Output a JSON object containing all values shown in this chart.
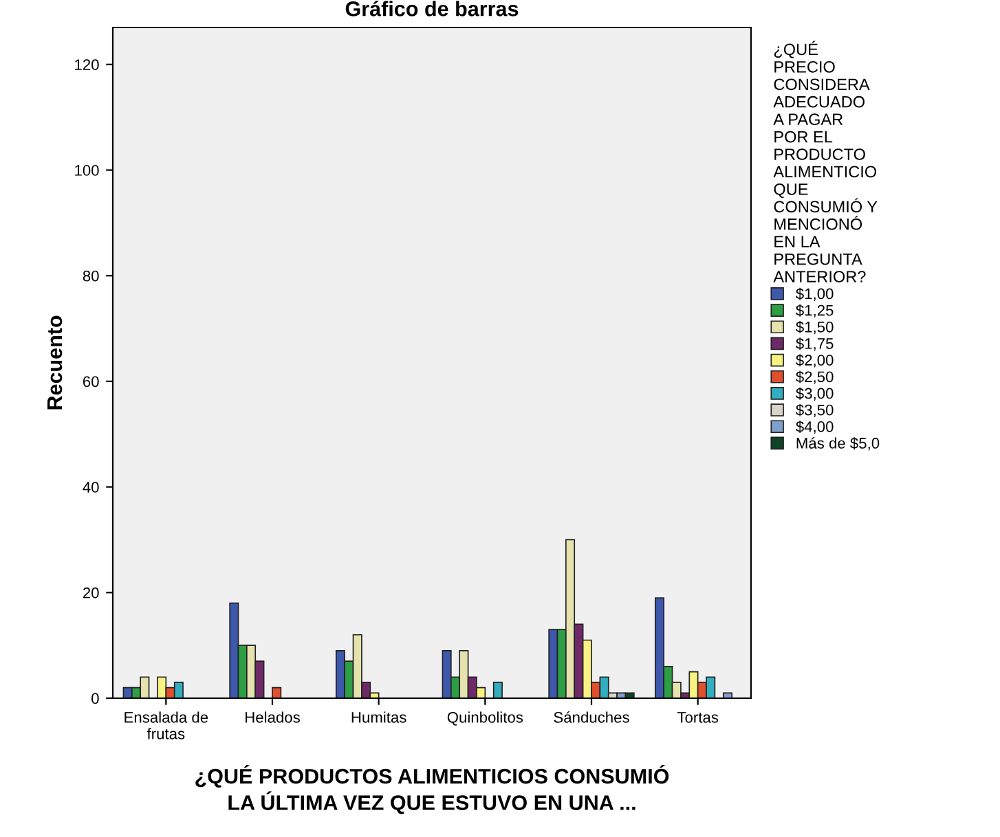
{
  "chart_data": {
    "type": "bar",
    "title": "Gráfico de barras",
    "xlabel": "¿QUÉ PRODUCTOS ALIMENTICIOS CONSUMIÓ\nLA ÚLTIMA VEZ QUE ESTUVO EN UNA ...",
    "ylabel": "Recuento",
    "legend_title": "¿QUÉ\nPRECIO\nCONSIDERA\nADECUADO\nA PAGAR\nPOR EL\nPRODUCTO\nALIMENTICIO\nQUE\nCONSUMIÓ Y\nMENCIONÓ\nEN LA\nPREGUNTA\nANTERIOR?",
    "categories": [
      "Ensalada de\nfrutas",
      "Helados",
      "Humitas",
      "Quinbolitos",
      "Sánduches",
      "Tortas"
    ],
    "series": [
      {
        "name": "$1,00",
        "color": "#3e58ac",
        "values": [
          2,
          18,
          9,
          9,
          13,
          19
        ]
      },
      {
        "name": "$1,25",
        "color": "#2e9e44",
        "values": [
          2,
          10,
          7,
          4,
          13,
          6
        ]
      },
      {
        "name": "$1,50",
        "color": "#e6e2ae",
        "values": [
          4,
          10,
          12,
          9,
          30,
          3
        ]
      },
      {
        "name": "$1,75",
        "color": "#6e2a68",
        "values": [
          null,
          7,
          3,
          4,
          14,
          1
        ]
      },
      {
        "name": "$2,00",
        "color": "#f8f282",
        "values": [
          4,
          null,
          1,
          2,
          11,
          5
        ]
      },
      {
        "name": "$2,50",
        "color": "#e0502e",
        "values": [
          2,
          2,
          null,
          null,
          3,
          3
        ]
      },
      {
        "name": "$3,00",
        "color": "#34adc0",
        "values": [
          3,
          null,
          null,
          3,
          4,
          4
        ]
      },
      {
        "name": "$3,50",
        "color": "#d8d4c8",
        "values": [
          null,
          null,
          null,
          null,
          1,
          null
        ]
      },
      {
        "name": "$4,00",
        "color": "#7f9fcc",
        "values": [
          null,
          null,
          null,
          null,
          1,
          1
        ]
      },
      {
        "name": "Más de $5,0",
        "color": "#0e4426",
        "values": [
          null,
          null,
          null,
          null,
          1,
          null
        ]
      }
    ],
    "ylim": [
      0,
      127
    ],
    "yticks": [
      0,
      20,
      40,
      60,
      80,
      100,
      120
    ],
    "grid": false,
    "legend": "right"
  }
}
